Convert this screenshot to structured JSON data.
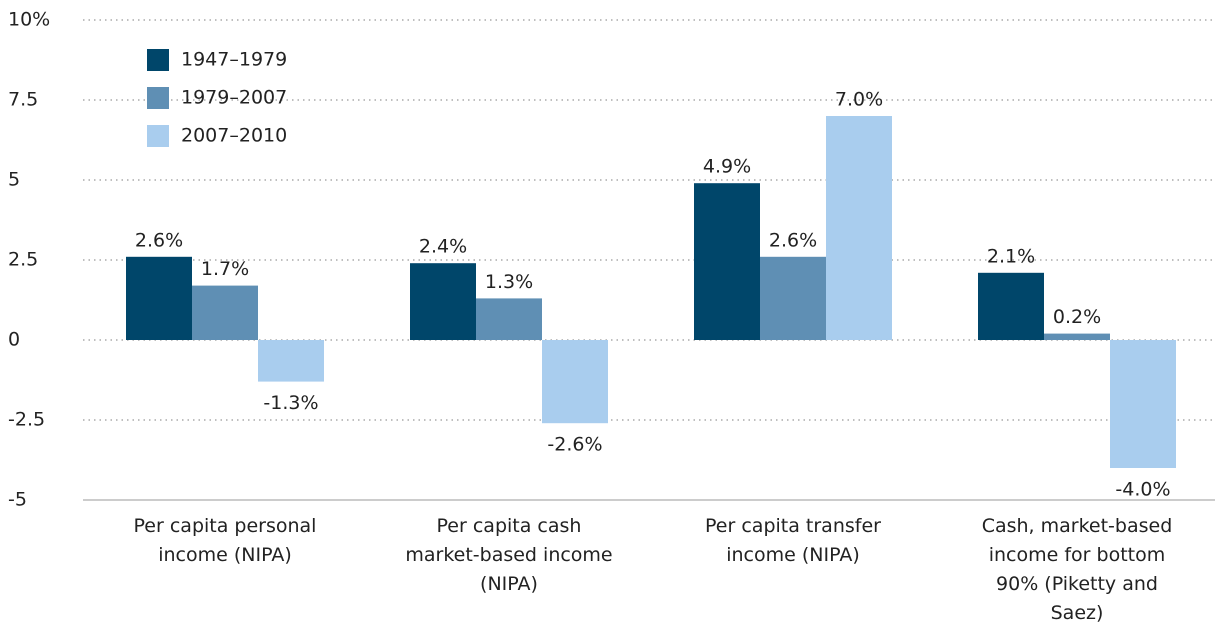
{
  "chart_data": {
    "type": "bar",
    "categories": [
      "Per capita personal income (NIPA)",
      "Per capita cash market-based income (NIPA)",
      "Per capita transfer income (NIPA)",
      "Cash, market-based income for bottom 90% (Piketty and Saez)"
    ],
    "series": [
      {
        "name": "1947–1979",
        "color": "#00466a",
        "values": [
          2.6,
          2.4,
          4.9,
          2.1
        ],
        "value_labels": [
          "2.6%",
          "2.4%",
          "4.9%",
          "2.1%"
        ]
      },
      {
        "name": "1979–2007",
        "color": "#5f8fb4",
        "values": [
          1.7,
          1.3,
          2.6,
          0.2
        ],
        "value_labels": [
          "1.7%",
          "1.3%",
          "2.6%",
          "0.2%"
        ]
      },
      {
        "name": "2007–2010",
        "color": "#a9cdee",
        "values": [
          -1.3,
          -2.6,
          7.0,
          -4.0
        ],
        "value_labels": [
          "-1.3%",
          "-2.6%",
          "7.0%",
          "-4.0%"
        ]
      }
    ],
    "ylim": [
      -5,
      10
    ],
    "yticks": [
      -5,
      -2.5,
      0,
      2.5,
      5,
      7.5,
      {
        "value": 10,
        "label": "10%"
      }
    ],
    "grid": true,
    "legend": "upper-left"
  }
}
